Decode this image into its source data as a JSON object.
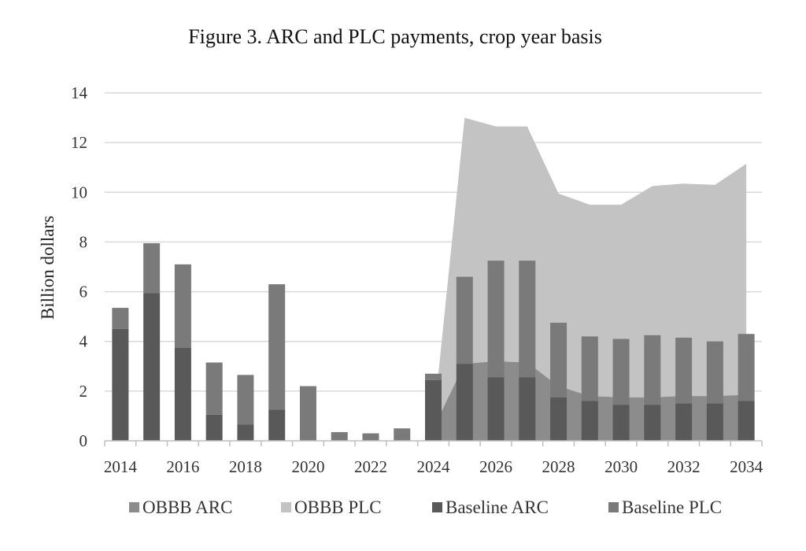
{
  "chart_data": {
    "type": "bar",
    "title": "Figure 3. ARC and PLC payments, crop year basis",
    "ylabel": "Billion dollars",
    "xlabel": "",
    "ylim": [
      0,
      14
    ],
    "yticks": [
      0,
      2,
      4,
      6,
      8,
      10,
      12,
      14
    ],
    "categories": [
      "2014",
      "2015",
      "2016",
      "2017",
      "2018",
      "2019",
      "2020",
      "2021",
      "2022",
      "2023",
      "2024",
      "2025",
      "2026",
      "2027",
      "2028",
      "2029",
      "2030",
      "2031",
      "2032",
      "2033",
      "2034"
    ],
    "xtick_labels": [
      "2014",
      "2016",
      "2018",
      "2020",
      "2022",
      "2024",
      "2026",
      "2028",
      "2030",
      "2032",
      "2034"
    ],
    "grid": true,
    "legend_position": "bottom",
    "series": [
      {
        "name": "OBBB ARC",
        "kind": "area",
        "color": "#8c8c8c",
        "values": [
          null,
          null,
          null,
          null,
          null,
          null,
          null,
          null,
          null,
          null,
          0.5,
          3.1,
          3.2,
          3.15,
          2.2,
          1.8,
          1.75,
          1.75,
          1.8,
          1.8,
          1.85
        ]
      },
      {
        "name": "OBBB PLC",
        "kind": "stacked-area",
        "color": "#c3c3c3",
        "values": [
          null,
          null,
          null,
          null,
          null,
          null,
          null,
          null,
          null,
          null,
          0.2,
          9.9,
          9.45,
          9.5,
          7.75,
          7.7,
          7.75,
          8.5,
          8.55,
          8.5,
          9.3
        ]
      },
      {
        "name": "Baseline ARC",
        "kind": "stacked-bar",
        "color": "#595959",
        "values": [
          4.5,
          5.95,
          3.75,
          1.05,
          0.65,
          1.25,
          0,
          0,
          0,
          0,
          2.45,
          3.1,
          2.55,
          2.55,
          1.75,
          1.6,
          1.45,
          1.45,
          1.5,
          1.5,
          1.6
        ]
      },
      {
        "name": "Baseline PLC",
        "kind": "stacked-bar",
        "color": "#7a7a7a",
        "values": [
          0.85,
          2.0,
          3.35,
          2.1,
          2.0,
          5.05,
          2.2,
          0.35,
          0.3,
          0.5,
          0.25,
          3.5,
          4.7,
          4.7,
          3.0,
          2.6,
          2.65,
          2.8,
          2.65,
          2.5,
          2.7
        ]
      }
    ]
  }
}
